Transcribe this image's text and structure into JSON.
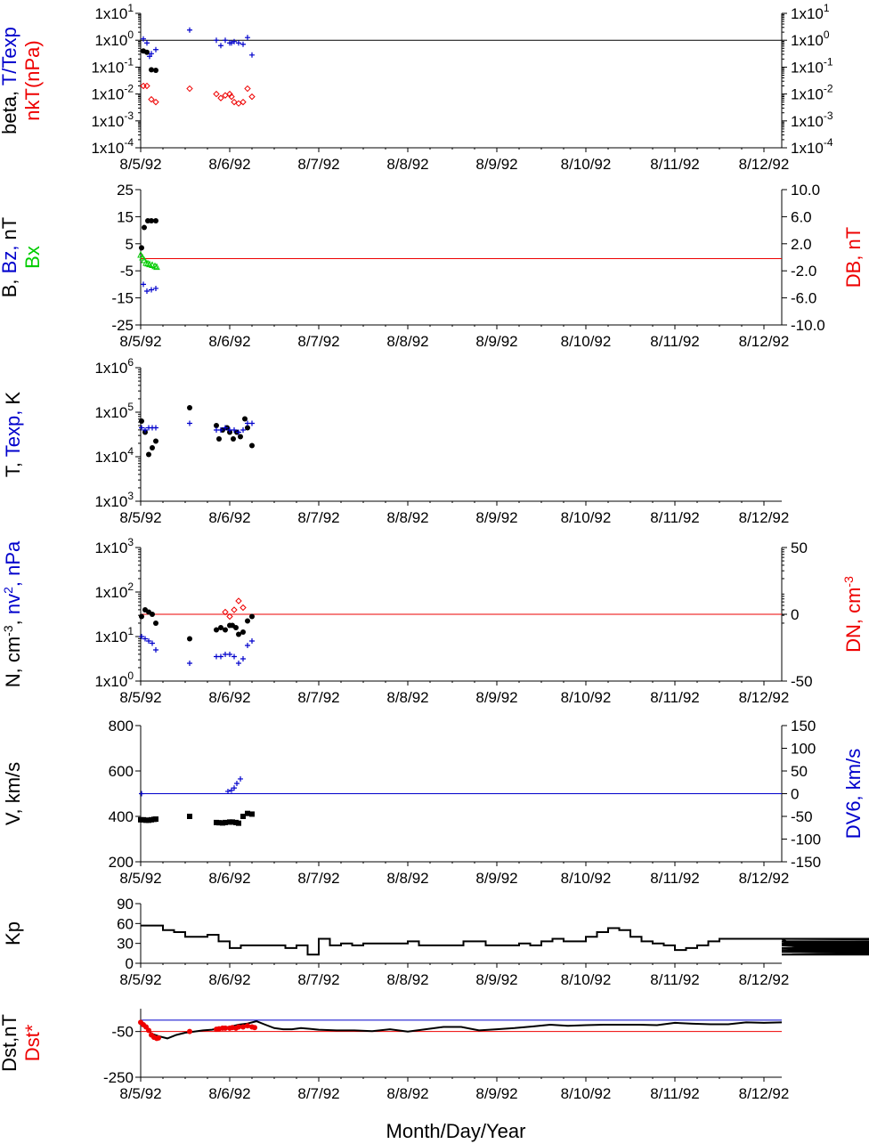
{
  "x_axis": {
    "title": "Month/Day/Year",
    "tick_labels": [
      "8/5/92",
      "8/6/92",
      "8/7/92",
      "8/8/92",
      "8/9/92",
      "8/10/92",
      "8/11/92",
      "8/12/92"
    ],
    "range_days": [
      0,
      7.2
    ]
  },
  "colors": {
    "black": "#000000",
    "blue": "#0000cc",
    "red": "#ee0000",
    "green": "#00cc00"
  },
  "chart_data": [
    {
      "id": "beta",
      "type": "scatter",
      "scale": "log",
      "ylabel_parts": [
        {
          "text": "beta, ",
          "color": "black"
        },
        {
          "text": "T/Texp",
          "color": "blue"
        }
      ],
      "ylabel2_parts": [
        {
          "text": "nkT(nPa)",
          "color": "red"
        }
      ],
      "ylim": [
        -4,
        1
      ],
      "left_ticks": [
        {
          "m": "1x10",
          "e": "1"
        },
        {
          "m": "1x10",
          "e": "0"
        },
        {
          "m": "1x10",
          "e": "-1"
        },
        {
          "m": "1x10",
          "e": "-2"
        },
        {
          "m": "1x10",
          "e": "-3"
        },
        {
          "m": "1x10",
          "e": "-4"
        }
      ],
      "right_ticks": [
        {
          "m": "1x10",
          "e": "1"
        },
        {
          "m": "1x10",
          "e": "0"
        },
        {
          "m": "1x10",
          "e": "-1"
        },
        {
          "m": "1x10",
          "e": "-2"
        },
        {
          "m": "1x10",
          "e": "-3"
        },
        {
          "m": "1x10",
          "e": "-4"
        }
      ],
      "reference_line": {
        "y": 0,
        "color": "black"
      },
      "series": [
        {
          "color": "black",
          "marker": "dot",
          "x": [
            0.03,
            0.07,
            0.12,
            0.17
          ],
          "y": [
            -0.4,
            -0.45,
            -1.1,
            -1.12
          ]
        },
        {
          "color": "blue",
          "marker": "plus",
          "x": [
            0.03,
            0.07,
            0.1,
            0.12,
            0.17,
            0.55,
            0.85,
            0.9,
            0.95,
            1.0,
            1.02,
            1.05,
            1.1,
            1.15,
            1.2,
            1.25
          ],
          "y": [
            0.05,
            -0.1,
            -0.6,
            -0.5,
            -0.35,
            0.38,
            0,
            -0.2,
            0,
            -0.1,
            -0.1,
            -0.05,
            -0.1,
            -0.15,
            0.1,
            -0.55
          ]
        },
        {
          "color": "red",
          "marker": "diamond",
          "x": [
            0.03,
            0.07,
            0.12,
            0.17,
            0.55,
            0.85,
            0.9,
            0.95,
            1.0,
            1.02,
            1.05,
            1.1,
            1.15,
            1.2,
            1.25
          ],
          "y": [
            -1.7,
            -1.7,
            -2.2,
            -2.3,
            -1.8,
            -2.0,
            -2.15,
            -2.05,
            -2.0,
            -2.1,
            -2.3,
            -2.35,
            -2.3,
            -1.8,
            -2.1
          ]
        }
      ]
    },
    {
      "id": "b",
      "type": "scatter",
      "scale": "linear",
      "ylabel_parts": [
        {
          "text": "B, ",
          "color": "black"
        },
        {
          "text": "Bz, ",
          "color": "blue"
        },
        {
          "text": "nT",
          "color": "black"
        }
      ],
      "ylabel2_parts": [
        {
          "text": "Bx",
          "color": "green"
        }
      ],
      "ylabel_right_parts": [
        {
          "text": "DB, nT",
          "color": "red"
        }
      ],
      "ylim": [
        -25,
        25
      ],
      "left_ticks": [
        "25",
        "15",
        "5",
        "-5",
        "-15",
        "-25"
      ],
      "right_ylim": [
        -10,
        10
      ],
      "right_ticks": [
        "10.0",
        "6.0",
        "2.0",
        "-2.0",
        "-6.0",
        "-10.0"
      ],
      "reference_line": {
        "y": -0.5,
        "color": "red"
      },
      "series": [
        {
          "color": "black",
          "marker": "dot",
          "x": [
            0.01,
            0.04,
            0.08,
            0.12,
            0.17
          ],
          "y": [
            3.5,
            11,
            13.5,
            13.5,
            13.5
          ]
        },
        {
          "color": "blue",
          "marker": "plus",
          "x": [
            0.03,
            0.07,
            0.12,
            0.17
          ],
          "y": [
            -10,
            -12.5,
            -12,
            -11.5
          ]
        },
        {
          "color": "green",
          "marker": "triangle",
          "x": [
            0.0,
            0.02,
            0.04,
            0.06,
            0.08,
            0.1,
            0.13,
            0.16,
            0.18
          ],
          "y": [
            1,
            0,
            -1,
            -2,
            -2.2,
            -2.5,
            -2.8,
            -3.2,
            -3.5
          ]
        }
      ]
    },
    {
      "id": "t",
      "type": "scatter",
      "scale": "log",
      "ylabel_parts": [
        {
          "text": "T, ",
          "color": "black"
        },
        {
          "text": "Texp, ",
          "color": "blue"
        },
        {
          "text": "K",
          "color": "black"
        }
      ],
      "ylim": [
        3,
        6
      ],
      "left_ticks": [
        {
          "m": "1x10",
          "e": "6"
        },
        {
          "m": "1x10",
          "e": "5"
        },
        {
          "m": "1x10",
          "e": "4"
        },
        {
          "m": "1x10",
          "e": "3"
        }
      ],
      "series": [
        {
          "color": "black",
          "marker": "dot",
          "x": [
            0.01,
            0.05,
            0.09,
            0.13,
            0.17,
            0.55,
            0.85,
            0.88,
            0.92,
            0.97,
            1.0,
            1.04,
            1.08,
            1.12,
            1.17,
            1.2,
            1.25
          ],
          "y": [
            4.8,
            4.55,
            4.05,
            4.2,
            4.35,
            5.1,
            4.7,
            4.4,
            4.6,
            4.65,
            4.55,
            4.4,
            4.55,
            4.45,
            4.85,
            4.65,
            4.25
          ]
        },
        {
          "color": "blue",
          "marker": "plus",
          "x": [
            0.01,
            0.05,
            0.09,
            0.13,
            0.17,
            0.55,
            0.85,
            0.9,
            0.95,
            1.0,
            1.05,
            1.1,
            1.15,
            1.2,
            1.25
          ],
          "y": [
            4.65,
            4.6,
            4.65,
            4.65,
            4.65,
            4.75,
            4.6,
            4.6,
            4.65,
            4.6,
            4.6,
            4.55,
            4.6,
            4.75,
            4.75
          ]
        }
      ]
    },
    {
      "id": "n",
      "type": "scatter",
      "scale": "log",
      "ylabel_parts": [
        {
          "text": "N, cm",
          "color": "black"
        },
        {
          "text": "-3",
          "color": "black",
          "sup": true
        },
        {
          "text": ", ",
          "color": "black"
        },
        {
          "text": "nv",
          "color": "blue"
        },
        {
          "text": "2",
          "color": "blue",
          "sup": true
        },
        {
          "text": ", nPa",
          "color": "blue"
        }
      ],
      "ylabel_right_parts": [
        {
          "text": "DN, cm",
          "color": "red"
        },
        {
          "text": "-3",
          "color": "red",
          "sup": true
        }
      ],
      "ylim": [
        0,
        3
      ],
      "left_ticks": [
        {
          "m": "1x10",
          "e": "3"
        },
        {
          "m": "1x10",
          "e": "2"
        },
        {
          "m": "1x10",
          "e": "1"
        },
        {
          "m": "1x10",
          "e": "0"
        }
      ],
      "right_ylim": [
        -50,
        50
      ],
      "right_ticks": [
        "50",
        "0",
        "-50"
      ],
      "reference_line": {
        "y": 1.5,
        "color": "red"
      },
      "series": [
        {
          "color": "black",
          "marker": "dot",
          "x": [
            0.01,
            0.05,
            0.09,
            0.13,
            0.17,
            0.55,
            0.85,
            0.9,
            0.95,
            1.0,
            1.03,
            1.07,
            1.1,
            1.15,
            1.2,
            1.25
          ],
          "y": [
            1.45,
            1.6,
            1.55,
            1.5,
            1.3,
            0.95,
            1.15,
            1.2,
            1.15,
            1.25,
            1.25,
            1.2,
            1.05,
            1.1,
            1.35,
            1.45
          ]
        },
        {
          "color": "blue",
          "marker": "plus",
          "x": [
            0.01,
            0.05,
            0.09,
            0.13,
            0.17,
            0.55,
            0.85,
            0.9,
            0.95,
            1.0,
            1.05,
            1.1,
            1.15,
            1.2,
            1.25
          ],
          "y": [
            1.0,
            0.95,
            0.9,
            0.85,
            0.7,
            0.4,
            0.55,
            0.55,
            0.6,
            0.6,
            0.55,
            0.4,
            0.5,
            0.8,
            0.9
          ]
        },
        {
          "color": "red",
          "marker": "diamond",
          "x": [
            0.95,
            1.0,
            1.05,
            1.1,
            1.15
          ],
          "y": [
            1.55,
            1.45,
            1.6,
            1.8,
            1.65
          ]
        }
      ]
    },
    {
      "id": "v",
      "type": "scatter",
      "scale": "linear",
      "ylabel_parts": [
        {
          "text": "V, km/s",
          "color": "black"
        }
      ],
      "ylabel_right_parts": [
        {
          "text": "DV6, km/s",
          "color": "blue"
        }
      ],
      "ylim": [
        200,
        800
      ],
      "left_ticks": [
        "800",
        "600",
        "400",
        "200"
      ],
      "right_ylim": [
        -150,
        150
      ],
      "right_ticks": [
        "150",
        "100",
        "50",
        "0",
        "-50",
        "-100",
        "-150"
      ],
      "reference_line": {
        "y": 500,
        "color": "blue"
      },
      "series": [
        {
          "color": "black",
          "marker": "square",
          "x": [
            0.0,
            0.03,
            0.06,
            0.09,
            0.12,
            0.15,
            0.17,
            0.55,
            0.85,
            0.88,
            0.92,
            0.95,
            1.0,
            1.03,
            1.07,
            1.1,
            1.15,
            1.2,
            1.25
          ],
          "y": [
            385,
            385,
            383,
            383,
            385,
            387,
            388,
            400,
            373,
            372,
            371,
            373,
            375,
            375,
            373,
            370,
            400,
            413,
            410
          ]
        },
        {
          "color": "blue",
          "marker": "plus",
          "x": [
            0.01,
            0.98,
            1.02,
            1.05,
            1.08,
            1.12
          ],
          "y": [
            500,
            510,
            515,
            525,
            545,
            565
          ]
        }
      ]
    },
    {
      "id": "kp",
      "type": "step",
      "scale": "linear",
      "ylabel_parts": [
        {
          "text": "Kp",
          "color": "black"
        }
      ],
      "ylim": [
        0,
        90
      ],
      "left_ticks": [
        "90",
        "60",
        "30",
        "0"
      ],
      "series": [
        {
          "color": "black",
          "step_hours": 3,
          "values": [
            57,
            57,
            50,
            47,
            40,
            40,
            43,
            33,
            23,
            27,
            27,
            27,
            27,
            23,
            27,
            13,
            37,
            27,
            30,
            27,
            30,
            30,
            30,
            30,
            33,
            27,
            27,
            27,
            27,
            33,
            33,
            27,
            27,
            27,
            30,
            27,
            33,
            37,
            33,
            33,
            40,
            47,
            53,
            50,
            40,
            33,
            30,
            27,
            20,
            23,
            27,
            33,
            37,
            37,
            37,
            37,
            37,
            37,
            33,
            30,
            30,
            33,
            30,
            23,
            27,
            23,
            27,
            27,
            30,
            30,
            30,
            23,
            17,
            27,
            30,
            23,
            30,
            27,
            23,
            30,
            30,
            23,
            27,
            27,
            27,
            23,
            27,
            13,
            20,
            20,
            13,
            13,
            17,
            13,
            20,
            20,
            20,
            17,
            23,
            20,
            13,
            13,
            17,
            20,
            17,
            20,
            20,
            20,
            20,
            23,
            33,
            27,
            27,
            23,
            23,
            23,
            27,
            27,
            23,
            23,
            33,
            27,
            30,
            27,
            37,
            37,
            37,
            30,
            30,
            33,
            30,
            37,
            37,
            30,
            27,
            27,
            27,
            27,
            27,
            27,
            23,
            23,
            23,
            23,
            23,
            23,
            23,
            23,
            23,
            23,
            23,
            23,
            23,
            23,
            23,
            23,
            23,
            23,
            23,
            23,
            23,
            23,
            23,
            23,
            23,
            23,
            23,
            23,
            23,
            23,
            23,
            23,
            23,
            23,
            23,
            23,
            23,
            23,
            23,
            23,
            23,
            23
          ]
        }
      ]
    },
    {
      "id": "dst",
      "type": "line",
      "scale": "linear",
      "ylabel_parts": [
        {
          "text": "Dst,nT",
          "color": "black"
        }
      ],
      "ylabel2_parts": [
        {
          "text": "Dst*",
          "color": "red"
        }
      ],
      "ylim": [
        -250,
        50
      ],
      "left_ticks": [
        "-50",
        "-250"
      ],
      "hlines": [
        {
          "y": 0,
          "color": "blue"
        },
        {
          "y": -50,
          "color": "red"
        }
      ],
      "series": [
        {
          "color": "black",
          "x": [
            0,
            0.04,
            0.08,
            0.12,
            0.16,
            0.2,
            0.3,
            0.4,
            0.5,
            0.6,
            0.7,
            0.8,
            0.9,
            1.0,
            1.1,
            1.2,
            1.3,
            1.4,
            1.5,
            1.6,
            1.7,
            1.8,
            1.9,
            2.0,
            2.2,
            2.4,
            2.6,
            2.8,
            3.0,
            3.2,
            3.4,
            3.6,
            3.8,
            4.0,
            4.2,
            4.4,
            4.6,
            4.8,
            5.0,
            5.2,
            5.4,
            5.6,
            5.8,
            6.0,
            6.2,
            6.4,
            6.6,
            6.8,
            7.0,
            7.2
          ],
          "y": [
            -10,
            -15,
            -40,
            -60,
            -65,
            -70,
            -80,
            -65,
            -55,
            -50,
            -45,
            -42,
            -35,
            -30,
            -20,
            -15,
            -5,
            -20,
            -35,
            -40,
            -40,
            -35,
            -38,
            -42,
            -45,
            -45,
            -48,
            -40,
            -50,
            -40,
            -30,
            -30,
            -45,
            -40,
            -35,
            -28,
            -20,
            -25,
            -22,
            -20,
            -20,
            -20,
            -22,
            -12,
            -16,
            -18,
            -18,
            -10,
            -12,
            -10
          ]
        },
        {
          "color": "red",
          "marker": "dot",
          "x": [
            0.0,
            0.03,
            0.06,
            0.09,
            0.12,
            0.15,
            0.18,
            0.2,
            0.55,
            0.85,
            0.88,
            0.92,
            0.95,
            1.0,
            1.03,
            1.07,
            1.1,
            1.15,
            1.2,
            1.25,
            1.28
          ],
          "y": [
            -10,
            -20,
            -30,
            -45,
            -65,
            -75,
            -80,
            -78,
            -50,
            -40,
            -38,
            -35,
            -35,
            -35,
            -33,
            -35,
            -30,
            -30,
            -25,
            -30,
            -33
          ]
        }
      ]
    }
  ]
}
